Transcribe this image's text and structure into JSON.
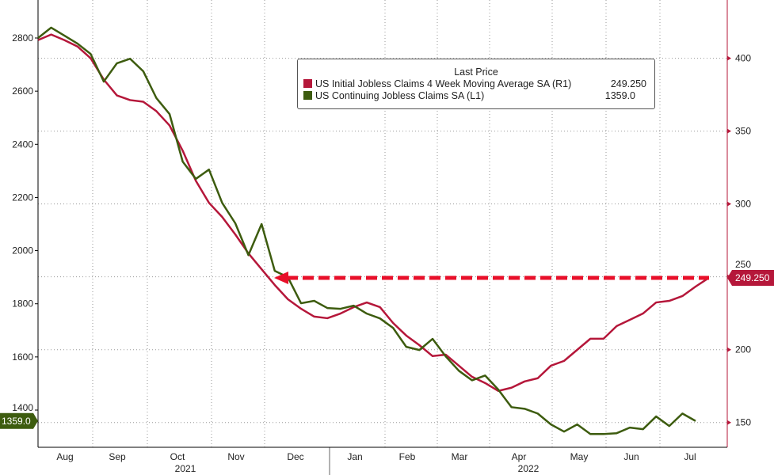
{
  "chart_data": {
    "type": "line",
    "title": "",
    "x_tick_labels": [
      "Aug",
      "Sep",
      "Oct",
      "Nov",
      "Dec",
      "Jan",
      "Feb",
      "Mar",
      "Apr",
      "May",
      "Jun",
      "Jul"
    ],
    "x_year_labels": [
      "2021",
      "2022"
    ],
    "left_axis": {
      "ticks": [
        1400,
        1600,
        1800,
        2000,
        2200,
        2400,
        2600,
        2800
      ],
      "range": [
        1260,
        2943
      ]
    },
    "right_axis": {
      "ticks": [
        150,
        200,
        250,
        300,
        350,
        400
      ],
      "range": [
        133,
        440
      ]
    },
    "grid": true,
    "legend": {
      "title": "Last Price",
      "placement": "top-center"
    },
    "series": [
      {
        "name": "US Initial Jobless Claims 4 Week Moving Average SA  (R1)",
        "last": "249.250",
        "axis": "right",
        "color": "#b5173a",
        "values": [
          412.5,
          416.3,
          412.5,
          408.1,
          400,
          385.4,
          374.5,
          371.3,
          370.2,
          363.7,
          353.9,
          336.6,
          315.9,
          300.8,
          291.1,
          279.1,
          266.1,
          255.2,
          244.4,
          234.6,
          228.1,
          222.7,
          221.6,
          224.8,
          229.2,
          232.4,
          229.2,
          218.3,
          209.7,
          203.1,
          195.6,
          196.6,
          189.0,
          181.4,
          177.1,
          171.7,
          173.9,
          178.2,
          180.4,
          189.0,
          192.3,
          199.9,
          207.5,
          207.5,
          216.2,
          220.5,
          224.8,
          232.4,
          233.5,
          236.8,
          243.3,
          249.25
        ]
      },
      {
        "name": "US Continuing Jobless Claims SA  (L1)",
        "last": "1359.0",
        "axis": "left",
        "color": "#3d5c0f",
        "values": [
          2800,
          2839,
          2809,
          2779,
          2740,
          2636,
          2705,
          2722,
          2675,
          2574,
          2514,
          2335,
          2270,
          2305,
          2180,
          2103,
          1983,
          2100,
          1924,
          1900,
          1802,
          1811,
          1784,
          1781,
          1793,
          1763,
          1745,
          1709,
          1638,
          1626,
          1668,
          1602,
          1548,
          1512,
          1530,
          1477,
          1411,
          1405,
          1387,
          1346,
          1319,
          1346,
          1310,
          1310,
          1313,
          1334,
          1328,
          1376,
          1340,
          1387,
          1359
        ]
      }
    ],
    "annotation": {
      "type": "dashed-arrow",
      "value": 249.25,
      "axis": "right",
      "color": "#e8102a"
    }
  }
}
